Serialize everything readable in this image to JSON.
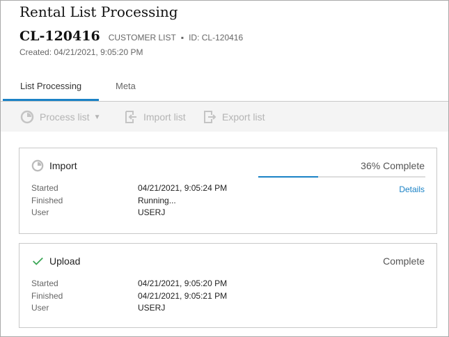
{
  "header": {
    "title": "Rental List Processing",
    "code": "CL-120416",
    "type": "CUSTOMER LIST",
    "id": "ID: CL-120416",
    "created": "Created: 04/21/2021, 9:05:20 PM"
  },
  "tabs": [
    {
      "label": "List Processing",
      "active": true
    },
    {
      "label": "Meta",
      "active": false
    }
  ],
  "toolbar": {
    "process": "Process list",
    "import": "Import list",
    "export": "Export list"
  },
  "accent": "#1a82c6",
  "cards": [
    {
      "name": "Import",
      "icon": "processing-icon",
      "status": "36% Complete",
      "progress_percent": 36,
      "details": "Details",
      "rows": [
        {
          "k": "Started",
          "v": "04/21/2021, 9:05:24 PM"
        },
        {
          "k": "Finished",
          "v": "Running..."
        },
        {
          "k": "User",
          "v": "USERJ"
        }
      ]
    },
    {
      "name": "Upload",
      "icon": "check-icon",
      "status": "Complete",
      "rows": [
        {
          "k": "Started",
          "v": "04/21/2021, 9:05:20 PM"
        },
        {
          "k": "Finished",
          "v": "04/21/2021, 9:05:21 PM"
        },
        {
          "k": "User",
          "v": "USERJ"
        }
      ]
    }
  ]
}
